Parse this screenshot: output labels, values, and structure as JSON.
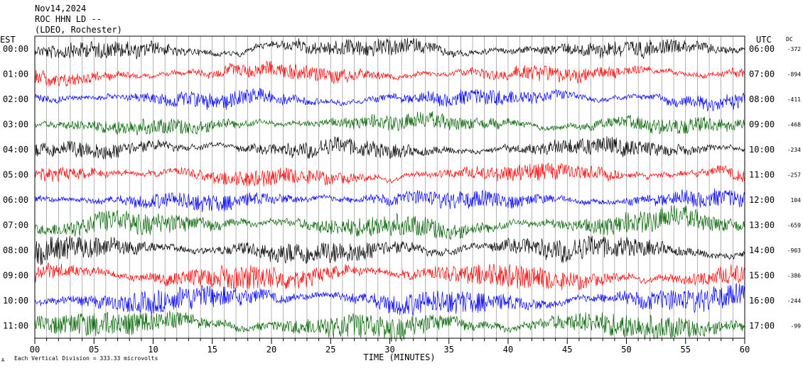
{
  "header": {
    "date": "Nov14,2024",
    "station": "ROC HHN LD --",
    "network": "(LDEO, Rochester)"
  },
  "axes": {
    "left_label": "EST",
    "right_label": "UTC",
    "dc_label": "DC",
    "xlabel": "TIME (MINUTES)",
    "footer_note": "Each Vertical Division =  333.33 microvolts",
    "footer_mark": "A"
  },
  "chart_data": {
    "type": "line",
    "title": "",
    "xlabel": "TIME (MINUTES)",
    "xlim": [
      0,
      60
    ],
    "x_ticks": [
      "00",
      "05",
      "10",
      "15",
      "20",
      "25",
      "30",
      "35",
      "40",
      "45",
      "50",
      "55",
      "60"
    ],
    "rows": [
      {
        "est": "00:00",
        "utc": "06:00",
        "dc": "-372",
        "color": "#000000",
        "activity": 0.55
      },
      {
        "est": "01:00",
        "utc": "07:00",
        "dc": "-894",
        "color": "#ff0000",
        "activity": 0.45
      },
      {
        "est": "02:00",
        "utc": "08:00",
        "dc": "-411",
        "color": "#0000ff",
        "activity": 0.5
      },
      {
        "est": "03:00",
        "utc": "09:00",
        "dc": "-468",
        "color": "#006400",
        "activity": 0.5
      },
      {
        "est": "04:00",
        "utc": "10:00",
        "dc": "-234",
        "color": "#000000",
        "activity": 0.6
      },
      {
        "est": "05:00",
        "utc": "11:00",
        "dc": "-257",
        "color": "#ff0000",
        "activity": 0.55
      },
      {
        "est": "06:00",
        "utc": "12:00",
        "dc": "104",
        "color": "#0000ff",
        "activity": 0.6
      },
      {
        "est": "07:00",
        "utc": "13:00",
        "dc": "-659",
        "color": "#006400",
        "activity": 0.9
      },
      {
        "est": "08:00",
        "utc": "14:00",
        "dc": "-903",
        "color": "#000000",
        "activity": 0.95
      },
      {
        "est": "09:00",
        "utc": "15:00",
        "dc": "-386",
        "color": "#ff0000",
        "activity": 1.0
      },
      {
        "est": "10:00",
        "utc": "16:00",
        "dc": "-244",
        "color": "#0000ff",
        "activity": 1.0
      },
      {
        "est": "11:00",
        "utc": "17:00",
        "dc": "-99",
        "color": "#006400",
        "activity": 1.1
      }
    ]
  }
}
